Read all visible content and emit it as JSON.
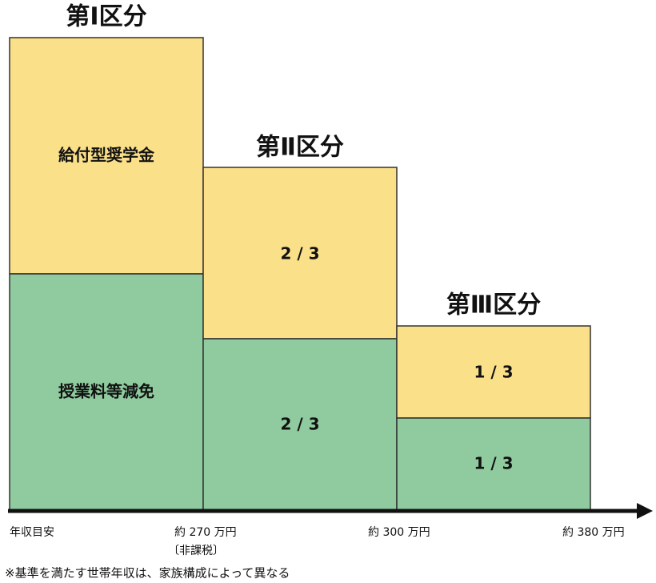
{
  "columns": [
    {
      "title": "第Ⅰ区分",
      "top_label": "給付型奨学金",
      "bottom_label": "授業料等減免"
    },
    {
      "title": "第Ⅱ区分",
      "top_label": "2 / 3",
      "bottom_label": "2 / 3"
    },
    {
      "title": "第Ⅲ区分",
      "top_label": "1 / 3",
      "bottom_label": "1 / 3"
    }
  ],
  "axis": {
    "label": "年収目安",
    "ticks": [
      "約 270 万円",
      "約 300 万円",
      "約 380 万円"
    ],
    "tick_note": "〔非課税〕"
  },
  "footnote": "※基準を満たす世帯年収は、家族構成によって異なる"
}
